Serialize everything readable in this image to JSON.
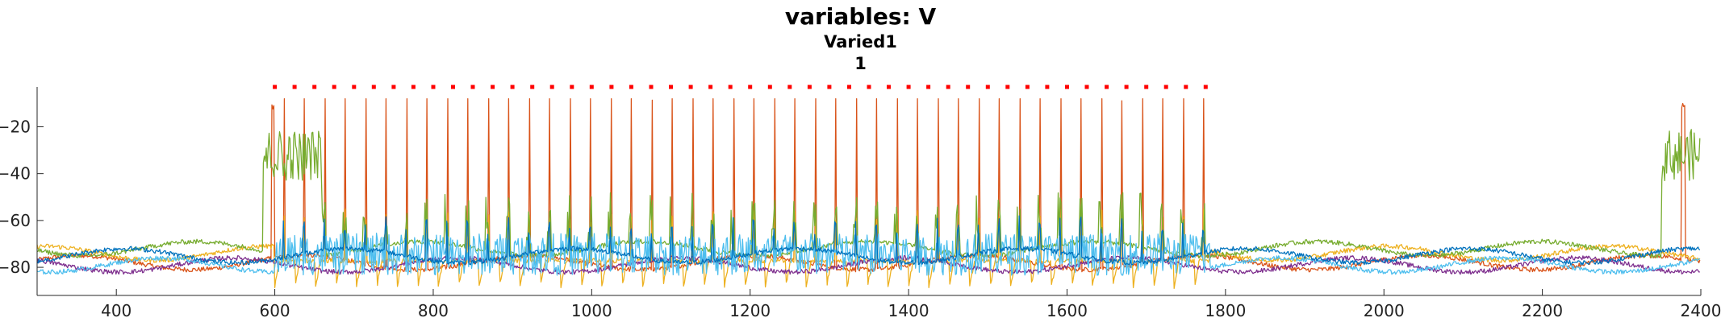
{
  "chart_data": {
    "type": "line",
    "title": "variables: V",
    "subtitle_1": "Varied1",
    "subtitle_2": "1",
    "xlim": [
      300,
      2400
    ],
    "ylim": [
      -92,
      -3
    ],
    "x_ticks": [
      400,
      600,
      800,
      1000,
      1200,
      1400,
      1600,
      1800,
      2000,
      2200,
      2400
    ],
    "y_ticks": [
      -80,
      -60,
      -40,
      -20
    ],
    "x_tick_labels": [
      "400",
      "600",
      "800",
      "1000",
      "1200",
      "1400",
      "1600",
      "1800",
      "2000",
      "2200",
      "2400"
    ],
    "y_tick_labels": [
      "−80",
      "−60",
      "−40",
      "−20"
    ],
    "stimulus_marker": {
      "x_start": 600,
      "x_end": 1780,
      "y": -3,
      "color": "#ff0000",
      "style": "dotted"
    },
    "grid": false,
    "series": [
      {
        "color": "#d95319",
        "baseline": -78,
        "spike_peak": -12,
        "events": "spikes"
      },
      {
        "color": "#edb120",
        "baseline": -74,
        "spike_peak": -55,
        "events": "troughs"
      },
      {
        "color": "#7e2f8e",
        "baseline": -79,
        "spike_peak": -72,
        "events": "none"
      },
      {
        "color": "#77ac30",
        "baseline": -72,
        "spike_peak": -35,
        "events": "bursts"
      },
      {
        "color": "#4dbeee",
        "baseline": -79,
        "spike_peak": -60,
        "events": "noise"
      },
      {
        "color": "#0072bd",
        "baseline": -75,
        "spike_peak": -58,
        "events": "small"
      }
    ]
  }
}
